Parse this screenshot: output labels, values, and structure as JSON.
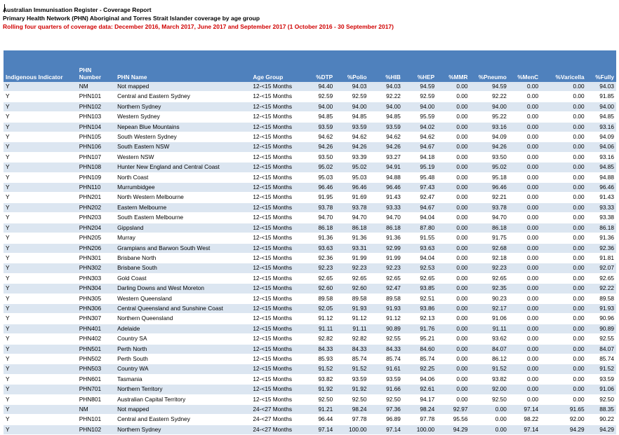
{
  "report": {
    "title": "Australian Immunisation Register - Coverage Report",
    "subtitle": "Primary Health Network (PHN) Aboriginal and Torres Strait Islander coverage by age group",
    "note": "Rolling four quarters of coverage data: December 2016, March 2017, June 2017 and September 2017 (1 October 2016 - 30 September 2017)"
  },
  "table": {
    "headers": [
      "Indigenous Indicator",
      "PHN Number",
      "PHN Name",
      "Age Group",
      "%DTP",
      "%Polio",
      "%HIB",
      "%HEP",
      "%MMR",
      "%Pneumo",
      "%MenC",
      "%Varicella",
      "%Fully"
    ],
    "rows": [
      [
        "Y",
        "NM",
        "Not mapped",
        "12-<15 Months",
        "94.40",
        "94.03",
        "94.03",
        "94.59",
        "0.00",
        "94.59",
        "0.00",
        "0.00",
        "94.03"
      ],
      [
        "Y",
        "PHN101",
        "Central and Eastern Sydney",
        "12-<15 Months",
        "92.59",
        "92.59",
        "92.22",
        "92.59",
        "0.00",
        "92.22",
        "0.00",
        "0.00",
        "91.85"
      ],
      [
        "Y",
        "PHN102",
        "Northern Sydney",
        "12-<15 Months",
        "94.00",
        "94.00",
        "94.00",
        "94.00",
        "0.00",
        "94.00",
        "0.00",
        "0.00",
        "94.00"
      ],
      [
        "Y",
        "PHN103",
        "Western Sydney",
        "12-<15 Months",
        "94.85",
        "94.85",
        "94.85",
        "95.59",
        "0.00",
        "95.22",
        "0.00",
        "0.00",
        "94.85"
      ],
      [
        "Y",
        "PHN104",
        "Nepean Blue Mountains",
        "12-<15 Months",
        "93.59",
        "93.59",
        "93.59",
        "94.02",
        "0.00",
        "93.16",
        "0.00",
        "0.00",
        "93.16"
      ],
      [
        "Y",
        "PHN105",
        "South Western Sydney",
        "12-<15 Months",
        "94.62",
        "94.62",
        "94.62",
        "94.62",
        "0.00",
        "94.09",
        "0.00",
        "0.00",
        "94.09"
      ],
      [
        "Y",
        "PHN106",
        "South Eastern NSW",
        "12-<15 Months",
        "94.26",
        "94.26",
        "94.26",
        "94.67",
        "0.00",
        "94.26",
        "0.00",
        "0.00",
        "94.06"
      ],
      [
        "Y",
        "PHN107",
        "Western NSW",
        "12-<15 Months",
        "93.50",
        "93.39",
        "93.27",
        "94.18",
        "0.00",
        "93.50",
        "0.00",
        "0.00",
        "93.16"
      ],
      [
        "Y",
        "PHN108",
        "Hunter New England and Central Coast",
        "12-<15 Months",
        "95.02",
        "95.02",
        "94.91",
        "95.19",
        "0.00",
        "95.02",
        "0.00",
        "0.00",
        "94.85"
      ],
      [
        "Y",
        "PHN109",
        "North Coast",
        "12-<15 Months",
        "95.03",
        "95.03",
        "94.88",
        "95.48",
        "0.00",
        "95.18",
        "0.00",
        "0.00",
        "94.88"
      ],
      [
        "Y",
        "PHN110",
        "Murrumbidgee",
        "12-<15 Months",
        "96.46",
        "96.46",
        "96.46",
        "97.43",
        "0.00",
        "96.46",
        "0.00",
        "0.00",
        "96.46"
      ],
      [
        "Y",
        "PHN201",
        "North Western Melbourne",
        "12-<15 Months",
        "91.95",
        "91.69",
        "91.43",
        "92.47",
        "0.00",
        "92.21",
        "0.00",
        "0.00",
        "91.43"
      ],
      [
        "Y",
        "PHN202",
        "Eastern Melbourne",
        "12-<15 Months",
        "93.78",
        "93.78",
        "93.33",
        "94.67",
        "0.00",
        "93.78",
        "0.00",
        "0.00",
        "93.33"
      ],
      [
        "Y",
        "PHN203",
        "South Eastern Melbourne",
        "12-<15 Months",
        "94.70",
        "94.70",
        "94.70",
        "94.04",
        "0.00",
        "94.70",
        "0.00",
        "0.00",
        "93.38"
      ],
      [
        "Y",
        "PHN204",
        "Gippsland",
        "12-<15 Months",
        "86.18",
        "86.18",
        "86.18",
        "87.80",
        "0.00",
        "86.18",
        "0.00",
        "0.00",
        "86.18"
      ],
      [
        "Y",
        "PHN205",
        "Murray",
        "12-<15 Months",
        "91.36",
        "91.36",
        "91.36",
        "91.55",
        "0.00",
        "91.75",
        "0.00",
        "0.00",
        "91.36"
      ],
      [
        "Y",
        "PHN206",
        "Grampians and Barwon South West",
        "12-<15 Months",
        "93.63",
        "93.31",
        "92.99",
        "93.63",
        "0.00",
        "92.68",
        "0.00",
        "0.00",
        "92.36"
      ],
      [
        "Y",
        "PHN301",
        "Brisbane North",
        "12-<15 Months",
        "92.36",
        "91.99",
        "91.99",
        "94.04",
        "0.00",
        "92.18",
        "0.00",
        "0.00",
        "91.81"
      ],
      [
        "Y",
        "PHN302",
        "Brisbane South",
        "12-<15 Months",
        "92.23",
        "92.23",
        "92.23",
        "92.53",
        "0.00",
        "92.23",
        "0.00",
        "0.00",
        "92.07"
      ],
      [
        "Y",
        "PHN303",
        "Gold Coast",
        "12-<15 Months",
        "92.65",
        "92.65",
        "92.65",
        "92.65",
        "0.00",
        "92.65",
        "0.00",
        "0.00",
        "92.65"
      ],
      [
        "Y",
        "PHN304",
        "Darling Downs and West Moreton",
        "12-<15 Months",
        "92.60",
        "92.60",
        "92.47",
        "93.85",
        "0.00",
        "92.35",
        "0.00",
        "0.00",
        "92.22"
      ],
      [
        "Y",
        "PHN305",
        "Western Queensland",
        "12-<15 Months",
        "89.58",
        "89.58",
        "89.58",
        "92.51",
        "0.00",
        "90.23",
        "0.00",
        "0.00",
        "89.58"
      ],
      [
        "Y",
        "PHN306",
        "Central Queensland and Sunshine Coast",
        "12-<15 Months",
        "92.05",
        "91.93",
        "91.93",
        "93.86",
        "0.00",
        "92.17",
        "0.00",
        "0.00",
        "91.93"
      ],
      [
        "Y",
        "PHN307",
        "Northern Queensland",
        "12-<15 Months",
        "91.12",
        "91.12",
        "91.12",
        "92.13",
        "0.00",
        "91.06",
        "0.00",
        "0.00",
        "90.96"
      ],
      [
        "Y",
        "PHN401",
        "Adelaide",
        "12-<15 Months",
        "91.11",
        "91.11",
        "90.89",
        "91.76",
        "0.00",
        "91.11",
        "0.00",
        "0.00",
        "90.89"
      ],
      [
        "Y",
        "PHN402",
        "Country SA",
        "12-<15 Months",
        "92.82",
        "92.82",
        "92.55",
        "95.21",
        "0.00",
        "93.62",
        "0.00",
        "0.00",
        "92.55"
      ],
      [
        "Y",
        "PHN501",
        "Perth North",
        "12-<15 Months",
        "84.33",
        "84.33",
        "84.33",
        "84.60",
        "0.00",
        "84.07",
        "0.00",
        "0.00",
        "84.07"
      ],
      [
        "Y",
        "PHN502",
        "Perth South",
        "12-<15 Months",
        "85.93",
        "85.74",
        "85.74",
        "85.74",
        "0.00",
        "86.12",
        "0.00",
        "0.00",
        "85.74"
      ],
      [
        "Y",
        "PHN503",
        "Country WA",
        "12-<15 Months",
        "91.52",
        "91.52",
        "91.61",
        "92.25",
        "0.00",
        "91.52",
        "0.00",
        "0.00",
        "91.52"
      ],
      [
        "Y",
        "PHN601",
        "Tasmania",
        "12-<15 Months",
        "93.82",
        "93.59",
        "93.59",
        "94.06",
        "0.00",
        "93.82",
        "0.00",
        "0.00",
        "93.59"
      ],
      [
        "Y",
        "PHN701",
        "Northern Territory",
        "12-<15 Months",
        "91.92",
        "91.92",
        "91.66",
        "92.61",
        "0.00",
        "92.00",
        "0.00",
        "0.00",
        "91.06"
      ],
      [
        "Y",
        "PHN801",
        "Australian Capital Territory",
        "12-<15 Months",
        "92.50",
        "92.50",
        "92.50",
        "94.17",
        "0.00",
        "92.50",
        "0.00",
        "0.00",
        "92.50"
      ],
      [
        "Y",
        "NM",
        "Not mapped",
        "24-<27 Months",
        "91.21",
        "98.24",
        "97.36",
        "98.24",
        "92.97",
        "0.00",
        "97.14",
        "91.65",
        "88.35"
      ],
      [
        "Y",
        "PHN101",
        "Central and Eastern Sydney",
        "24-<27 Months",
        "96.44",
        "97.78",
        "96.89",
        "97.78",
        "95.56",
        "0.00",
        "98.22",
        "92.00",
        "90.22"
      ],
      [
        "Y",
        "PHN102",
        "Northern Sydney",
        "24-<27 Months",
        "97.14",
        "100.00",
        "97.14",
        "100.00",
        "94.29",
        "0.00",
        "97.14",
        "94.29",
        "94.29"
      ]
    ]
  }
}
